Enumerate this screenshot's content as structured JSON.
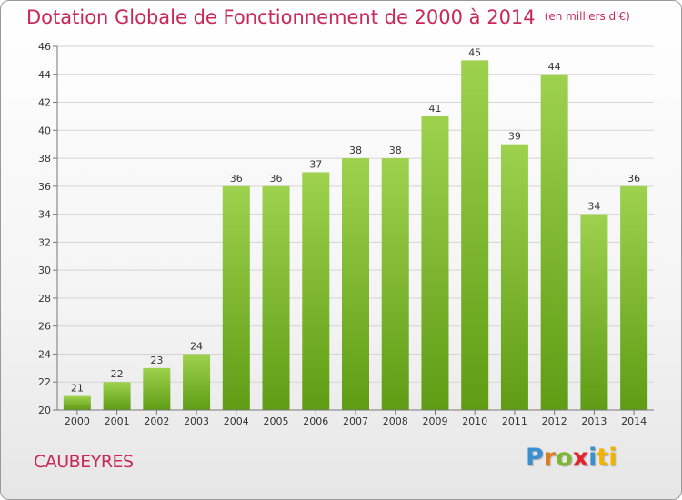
{
  "header": {
    "title": "Dotation Globale de Fonctionnement de 2000 à 2014",
    "unit": "(en milliers d'€)"
  },
  "footer": {
    "commune": "CAUBEYRES",
    "logo_letters": [
      "P",
      "r",
      "o",
      "x",
      "i",
      "ti"
    ]
  },
  "colors": {
    "title": "#c8285a",
    "bar_top": "#9ed24e",
    "bar_bottom": "#5f9c14",
    "grid": "#d4d4d4"
  },
  "chart_data": {
    "type": "bar",
    "categories": [
      "2000",
      "2001",
      "2002",
      "2003",
      "2004",
      "2005",
      "2006",
      "2007",
      "2008",
      "2009",
      "2010",
      "2011",
      "2012",
      "2013",
      "2014"
    ],
    "values": [
      21,
      22,
      23,
      24,
      36,
      36,
      37,
      38,
      38,
      41,
      45,
      39,
      44,
      34,
      36
    ],
    "title": "Dotation Globale de Fonctionnement de 2000 à 2014",
    "subtitle": "(en milliers d'€)",
    "ylim": [
      20,
      46
    ],
    "yticks": [
      20,
      22,
      24,
      26,
      28,
      30,
      32,
      34,
      36,
      38,
      40,
      42,
      44,
      46
    ],
    "grid": true,
    "legend": "none"
  }
}
